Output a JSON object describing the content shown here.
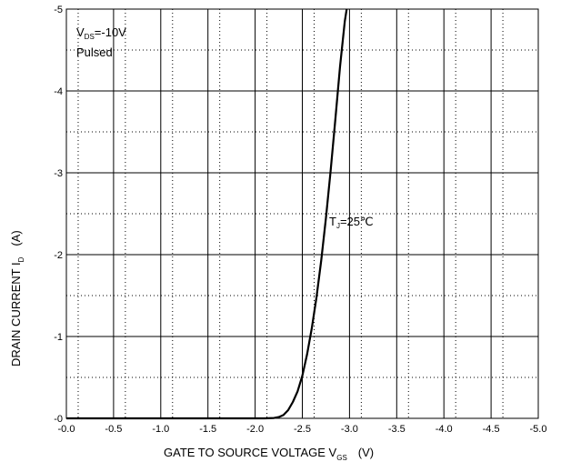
{
  "chart_data": {
    "type": "line",
    "xlabel": {
      "main": "GATE TO SOURCE VOLTAGE  V",
      "sub": "GS",
      "unit": "(V)"
    },
    "ylabel": {
      "main": "DRAIN CURRENT  I",
      "sub": "D",
      "unit": "(A)"
    },
    "xlim": [
      0,
      -5
    ],
    "ylim": [
      0,
      -5
    ],
    "x_ticks": [
      "-0.0",
      "-0.5",
      "-1.0",
      "-1.5",
      "-2.0",
      "-2.5",
      "-3.0",
      "-3.5",
      "-4.0",
      "-4.5",
      "-5.0"
    ],
    "y_ticks": [
      "-0",
      "-1",
      "-2",
      "-3",
      "-4",
      "-5"
    ],
    "grid": "solid major, dotted minor",
    "annotations": {
      "conditions": {
        "line1_pre": "V",
        "line1_sub": "DS",
        "line1_post": "=-10V",
        "line2": "Pulsed"
      },
      "series_label": {
        "pre": "T",
        "sub": "J",
        "post": "=25℃"
      }
    },
    "series": [
      {
        "x": [
          0.0,
          -2.1,
          -2.2,
          -2.25,
          -2.3,
          -2.35,
          -2.4,
          -2.45,
          -2.5,
          -2.55,
          -2.6,
          -2.65,
          -2.7,
          -2.75,
          -2.8,
          -2.85,
          -2.9,
          -2.95,
          -2.97
        ],
        "y": [
          0.0,
          0.0,
          -0.005,
          -0.015,
          -0.04,
          -0.1,
          -0.2,
          -0.33,
          -0.52,
          -0.78,
          -1.1,
          -1.48,
          -1.93,
          -2.45,
          -3.02,
          -3.65,
          -4.3,
          -4.85,
          -5.0
        ]
      }
    ]
  }
}
